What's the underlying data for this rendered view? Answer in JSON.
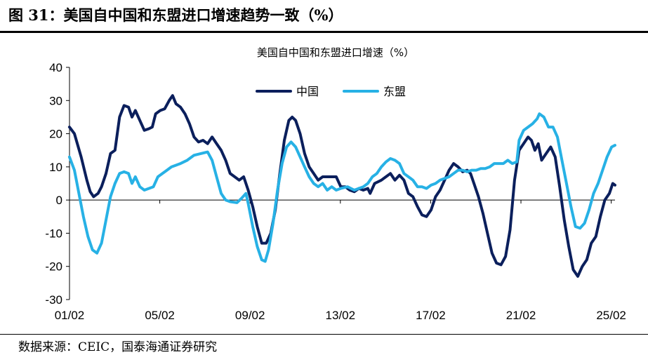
{
  "figure": {
    "title": "图 31：美国自中国和东盟进口增速趋势一致（%）",
    "source": "数据来源：CEIC，国泰海通证券研究"
  },
  "chart_data": {
    "type": "line",
    "title": "美国自中国和东盟进口增速（%）",
    "xlabel": "",
    "ylabel": "",
    "ylim": [
      -30,
      40
    ],
    "yticks": [
      -30,
      -20,
      -10,
      0,
      10,
      20,
      30,
      40
    ],
    "xlim": [
      2001.083,
      2025.25
    ],
    "xticks": [
      {
        "label": "01/02",
        "x": 2001.083
      },
      {
        "label": "05/02",
        "x": 2005.083
      },
      {
        "label": "09/02",
        "x": 2009.083
      },
      {
        "label": "13/02",
        "x": 2013.083
      },
      {
        "label": "17/02",
        "x": 2017.083
      },
      {
        "label": "21/02",
        "x": 2021.083
      },
      {
        "label": "25/02",
        "x": 2025.083
      }
    ],
    "grid": false,
    "legend": "top-center",
    "series": [
      {
        "name": "中国",
        "color": "#0b1f5c",
        "points": [
          [
            2001.08,
            22
          ],
          [
            2001.3,
            20
          ],
          [
            2001.6,
            13
          ],
          [
            2001.85,
            6
          ],
          [
            2002.0,
            2.5
          ],
          [
            2002.15,
            1
          ],
          [
            2002.35,
            2
          ],
          [
            2002.5,
            4
          ],
          [
            2002.7,
            8
          ],
          [
            2002.9,
            14
          ],
          [
            2003.1,
            15
          ],
          [
            2003.3,
            25
          ],
          [
            2003.5,
            28.5
          ],
          [
            2003.7,
            28
          ],
          [
            2003.85,
            25
          ],
          [
            2004.0,
            27
          ],
          [
            2004.2,
            24
          ],
          [
            2004.4,
            21
          ],
          [
            2004.6,
            21.5
          ],
          [
            2004.75,
            22
          ],
          [
            2004.9,
            26
          ],
          [
            2005.1,
            27
          ],
          [
            2005.3,
            27.5
          ],
          [
            2005.5,
            30
          ],
          [
            2005.65,
            31.5
          ],
          [
            2005.8,
            29
          ],
          [
            2006.0,
            28
          ],
          [
            2006.2,
            26
          ],
          [
            2006.4,
            23
          ],
          [
            2006.6,
            19
          ],
          [
            2006.8,
            17.5
          ],
          [
            2007.0,
            18
          ],
          [
            2007.2,
            17
          ],
          [
            2007.4,
            19
          ],
          [
            2007.6,
            17
          ],
          [
            2007.8,
            15
          ],
          [
            2008.0,
            12
          ],
          [
            2008.2,
            8
          ],
          [
            2008.4,
            7
          ],
          [
            2008.6,
            6
          ],
          [
            2008.8,
            7
          ],
          [
            2009.0,
            3
          ],
          [
            2009.2,
            -2
          ],
          [
            2009.4,
            -8
          ],
          [
            2009.6,
            -13
          ],
          [
            2009.8,
            -13
          ],
          [
            2010.0,
            -10
          ],
          [
            2010.2,
            -3
          ],
          [
            2010.4,
            8
          ],
          [
            2010.6,
            18
          ],
          [
            2010.8,
            24
          ],
          [
            2010.95,
            25
          ],
          [
            2011.1,
            24
          ],
          [
            2011.3,
            20
          ],
          [
            2011.5,
            14
          ],
          [
            2011.7,
            10
          ],
          [
            2011.9,
            8
          ],
          [
            2012.1,
            6
          ],
          [
            2012.3,
            7
          ],
          [
            2012.6,
            7
          ],
          [
            2012.9,
            7
          ],
          [
            2013.1,
            4
          ],
          [
            2013.3,
            4
          ],
          [
            2013.5,
            3
          ],
          [
            2013.7,
            2.5
          ],
          [
            2013.9,
            3.5
          ],
          [
            2014.1,
            3
          ],
          [
            2014.3,
            3.5
          ],
          [
            2014.4,
            2
          ],
          [
            2014.6,
            5
          ],
          [
            2014.9,
            6
          ],
          [
            2015.1,
            7
          ],
          [
            2015.3,
            8
          ],
          [
            2015.5,
            6
          ],
          [
            2015.7,
            7.5
          ],
          [
            2015.9,
            6
          ],
          [
            2016.1,
            2
          ],
          [
            2016.3,
            1
          ],
          [
            2016.5,
            -2
          ],
          [
            2016.7,
            -4.5
          ],
          [
            2016.9,
            -5
          ],
          [
            2017.1,
            -3
          ],
          [
            2017.3,
            1
          ],
          [
            2017.5,
            3
          ],
          [
            2017.7,
            6
          ],
          [
            2017.9,
            9
          ],
          [
            2018.1,
            11
          ],
          [
            2018.3,
            10
          ],
          [
            2018.5,
            8.5
          ],
          [
            2018.7,
            9
          ],
          [
            2018.85,
            8
          ],
          [
            2019.0,
            5
          ],
          [
            2019.2,
            1
          ],
          [
            2019.4,
            -4
          ],
          [
            2019.6,
            -10
          ],
          [
            2019.8,
            -16
          ],
          [
            2020.0,
            -19
          ],
          [
            2020.2,
            -19.5
          ],
          [
            2020.4,
            -17
          ],
          [
            2020.6,
            -9
          ],
          [
            2020.8,
            6
          ],
          [
            2021.0,
            15
          ],
          [
            2021.2,
            17
          ],
          [
            2021.4,
            19
          ],
          [
            2021.55,
            18
          ],
          [
            2021.7,
            15
          ],
          [
            2021.85,
            17
          ],
          [
            2022.0,
            12
          ],
          [
            2022.2,
            14
          ],
          [
            2022.4,
            16
          ],
          [
            2022.6,
            13
          ],
          [
            2022.8,
            4
          ],
          [
            2023.0,
            -6
          ],
          [
            2023.2,
            -14
          ],
          [
            2023.4,
            -21
          ],
          [
            2023.6,
            -23
          ],
          [
            2023.8,
            -20
          ],
          [
            2024.0,
            -18
          ],
          [
            2024.2,
            -13
          ],
          [
            2024.4,
            -11
          ],
          [
            2024.6,
            -5
          ],
          [
            2024.8,
            0
          ],
          [
            2025.0,
            2
          ],
          [
            2025.15,
            5
          ],
          [
            2025.25,
            4.5
          ]
        ]
      },
      {
        "name": "东盟",
        "color": "#27b1e5",
        "points": [
          [
            2001.08,
            13
          ],
          [
            2001.3,
            9
          ],
          [
            2001.5,
            2
          ],
          [
            2001.7,
            -5
          ],
          [
            2001.9,
            -11
          ],
          [
            2002.1,
            -15
          ],
          [
            2002.3,
            -16
          ],
          [
            2002.5,
            -13
          ],
          [
            2002.7,
            -6
          ],
          [
            2002.9,
            1
          ],
          [
            2003.1,
            5
          ],
          [
            2003.3,
            8
          ],
          [
            2003.5,
            8.5
          ],
          [
            2003.7,
            8
          ],
          [
            2003.85,
            5
          ],
          [
            2004.0,
            7
          ],
          [
            2004.2,
            4
          ],
          [
            2004.4,
            3
          ],
          [
            2004.6,
            3.5
          ],
          [
            2004.8,
            4
          ],
          [
            2005.0,
            7
          ],
          [
            2005.2,
            8
          ],
          [
            2005.4,
            9
          ],
          [
            2005.6,
            10
          ],
          [
            2005.8,
            10.5
          ],
          [
            2006.0,
            11
          ],
          [
            2006.3,
            12
          ],
          [
            2006.6,
            13.5
          ],
          [
            2006.9,
            14
          ],
          [
            2007.2,
            14.5
          ],
          [
            2007.4,
            12
          ],
          [
            2007.6,
            7
          ],
          [
            2007.8,
            2
          ],
          [
            2008.0,
            0
          ],
          [
            2008.2,
            -0.5
          ],
          [
            2008.5,
            -0.8
          ],
          [
            2008.7,
            0.5
          ],
          [
            2008.9,
            2
          ],
          [
            2009.0,
            -1
          ],
          [
            2009.2,
            -8
          ],
          [
            2009.4,
            -14
          ],
          [
            2009.6,
            -18
          ],
          [
            2009.75,
            -18.5
          ],
          [
            2009.9,
            -15
          ],
          [
            2010.1,
            -7
          ],
          [
            2010.3,
            3
          ],
          [
            2010.5,
            11
          ],
          [
            2010.7,
            16
          ],
          [
            2010.9,
            17.5
          ],
          [
            2011.1,
            16
          ],
          [
            2011.3,
            13
          ],
          [
            2011.5,
            10
          ],
          [
            2011.7,
            7
          ],
          [
            2011.9,
            5
          ],
          [
            2012.1,
            4
          ],
          [
            2012.3,
            5
          ],
          [
            2012.5,
            3
          ],
          [
            2012.7,
            4
          ],
          [
            2012.9,
            3
          ],
          [
            2013.1,
            3.5
          ],
          [
            2013.4,
            4
          ],
          [
            2013.7,
            3
          ],
          [
            2013.9,
            3.5
          ],
          [
            2014.1,
            4
          ],
          [
            2014.3,
            5
          ],
          [
            2014.5,
            7
          ],
          [
            2014.7,
            8
          ],
          [
            2014.9,
            10
          ],
          [
            2015.1,
            11.5
          ],
          [
            2015.3,
            12.5
          ],
          [
            2015.5,
            12
          ],
          [
            2015.7,
            11
          ],
          [
            2015.9,
            8
          ],
          [
            2016.1,
            7
          ],
          [
            2016.3,
            6
          ],
          [
            2016.5,
            4
          ],
          [
            2016.7,
            4
          ],
          [
            2016.9,
            3.5
          ],
          [
            2017.1,
            4.5
          ],
          [
            2017.3,
            5
          ],
          [
            2017.5,
            6
          ],
          [
            2017.7,
            6.5
          ],
          [
            2017.9,
            7
          ],
          [
            2018.1,
            8
          ],
          [
            2018.3,
            9
          ],
          [
            2018.5,
            9
          ],
          [
            2018.7,
            8.5
          ],
          [
            2018.9,
            9
          ],
          [
            2019.1,
            9
          ],
          [
            2019.3,
            9.5
          ],
          [
            2019.5,
            9.5
          ],
          [
            2019.7,
            10
          ],
          [
            2019.9,
            11
          ],
          [
            2020.1,
            11
          ],
          [
            2020.3,
            11
          ],
          [
            2020.5,
            12
          ],
          [
            2020.7,
            11
          ],
          [
            2020.9,
            11.5
          ],
          [
            2021.0,
            18
          ],
          [
            2021.2,
            21
          ],
          [
            2021.4,
            22
          ],
          [
            2021.6,
            23
          ],
          [
            2021.8,
            24.5
          ],
          [
            2021.9,
            26
          ],
          [
            2022.1,
            25
          ],
          [
            2022.3,
            22
          ],
          [
            2022.5,
            22
          ],
          [
            2022.7,
            19
          ],
          [
            2022.9,
            12
          ],
          [
            2023.1,
            5
          ],
          [
            2023.3,
            -2
          ],
          [
            2023.5,
            -8
          ],
          [
            2023.7,
            -8.5
          ],
          [
            2023.9,
            -7
          ],
          [
            2024.1,
            -3
          ],
          [
            2024.3,
            2
          ],
          [
            2024.5,
            5
          ],
          [
            2024.7,
            9
          ],
          [
            2024.9,
            13
          ],
          [
            2025.1,
            16
          ],
          [
            2025.25,
            16.5
          ]
        ]
      }
    ]
  }
}
